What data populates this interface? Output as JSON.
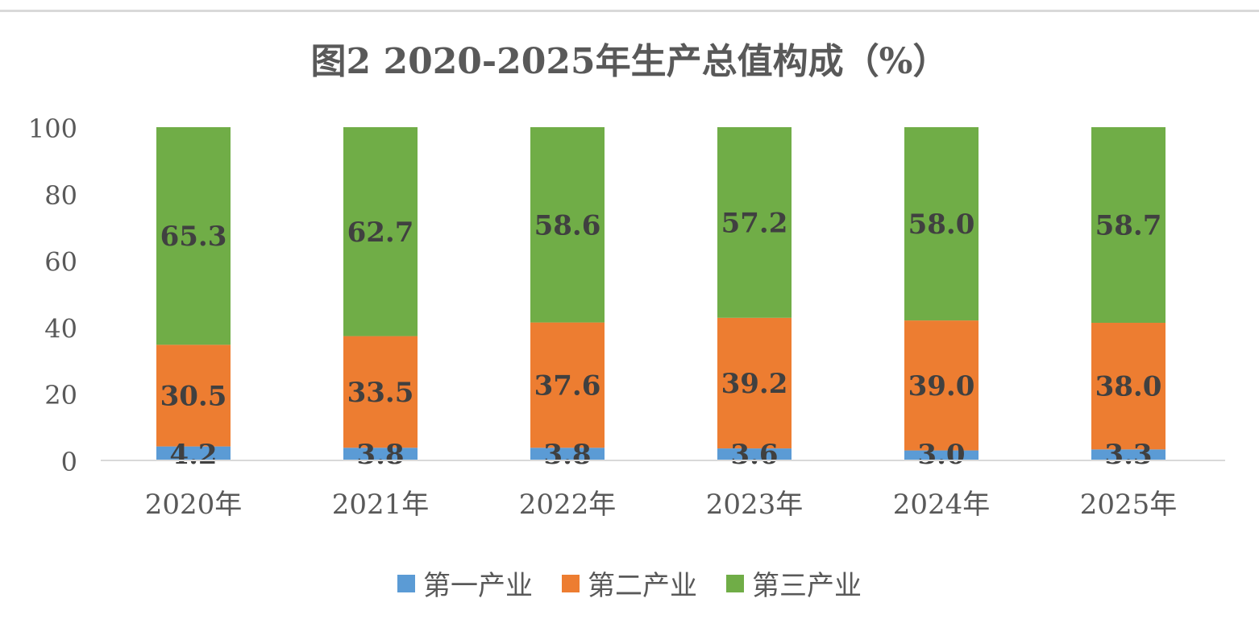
{
  "chart_data": {
    "type": "bar",
    "stacked": true,
    "title": "图2 2020-2025年生产总值构成（%）",
    "categories": [
      "2020年",
      "2021年",
      "2022年",
      "2023年",
      "2024年",
      "2025年"
    ],
    "series": [
      {
        "name": "第一产业",
        "color": "#5b9bd5",
        "values": [
          4.2,
          3.8,
          3.8,
          3.6,
          3.0,
          3.3
        ]
      },
      {
        "name": "第二产业",
        "color": "#ed7d31",
        "values": [
          30.5,
          33.5,
          37.6,
          39.2,
          39.0,
          38.0
        ]
      },
      {
        "name": "第三产业",
        "color": "#70ad47",
        "values": [
          65.3,
          62.7,
          58.6,
          57.2,
          58.0,
          58.7
        ]
      }
    ],
    "ylim": [
      0,
      100
    ],
    "yticks": [
      0,
      20,
      40,
      60,
      80,
      100
    ],
    "xlabel": "",
    "ylabel": "",
    "grid": false,
    "legend_position": "bottom"
  }
}
